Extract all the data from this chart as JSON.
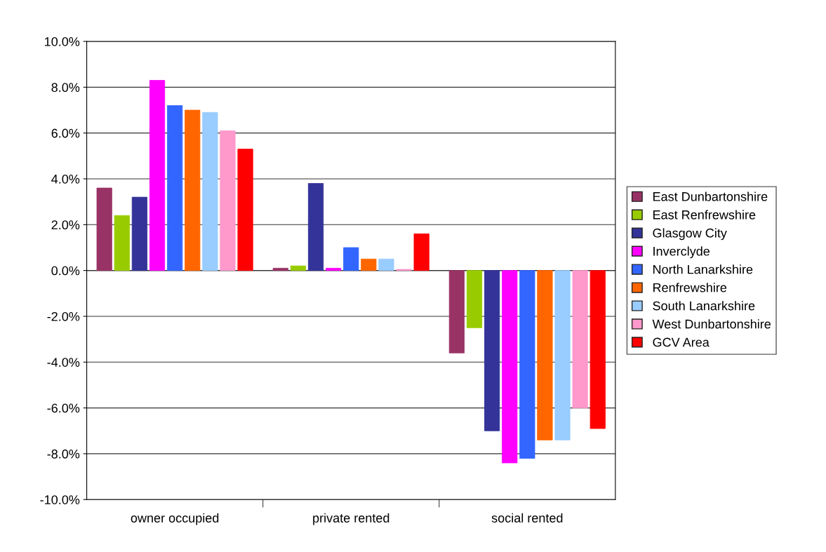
{
  "chart_data": {
    "type": "bar",
    "categories": [
      "owner occupied",
      "private rented",
      "social rented"
    ],
    "series": [
      {
        "name": "East Dunbartonshire",
        "color": "#993366",
        "values": [
          3.6,
          0.1,
          -3.6
        ]
      },
      {
        "name": "East Renfrewshire",
        "color": "#99cc00",
        "values": [
          2.4,
          0.2,
          -2.5
        ]
      },
      {
        "name": "Glasgow City",
        "color": "#333399",
        "values": [
          3.2,
          3.8,
          -7.0
        ]
      },
      {
        "name": "Inverclyde",
        "color": "#ff00ff",
        "values": [
          8.3,
          0.1,
          -8.4
        ]
      },
      {
        "name": "North Lanarkshire",
        "color": "#3366ff",
        "values": [
          7.2,
          1.0,
          -8.2
        ]
      },
      {
        "name": "Renfrewshire",
        "color": "#ff6600",
        "values": [
          7.0,
          0.5,
          -7.4
        ]
      },
      {
        "name": "South Lanarkshire",
        "color": "#99ccff",
        "values": [
          6.9,
          0.5,
          -7.4
        ]
      },
      {
        "name": "West Dunbartonshire",
        "color": "#ff99cc",
        "values": [
          6.1,
          0.05,
          -6.0
        ]
      },
      {
        "name": "GCV Area",
        "color": "#ff0000",
        "values": [
          5.3,
          1.6,
          -6.9
        ]
      }
    ],
    "ylim": [
      -10,
      10
    ],
    "yticks": [
      {
        "value": -10,
        "label": "-10.0%"
      },
      {
        "value": -8,
        "label": "-8.0%"
      },
      {
        "value": -6,
        "label": "-6.0%"
      },
      {
        "value": -4,
        "label": "-4.0%"
      },
      {
        "value": -2,
        "label": "-2.0%"
      },
      {
        "value": 0,
        "label": "0.0%"
      },
      {
        "value": 2,
        "label": "2.0%"
      },
      {
        "value": 4,
        "label": "4.0%"
      },
      {
        "value": 6,
        "label": "6.0%"
      },
      {
        "value": 8,
        "label": "8.0%"
      },
      {
        "value": 10,
        "label": "10.0%"
      }
    ],
    "grid": "y",
    "legend": "right"
  }
}
